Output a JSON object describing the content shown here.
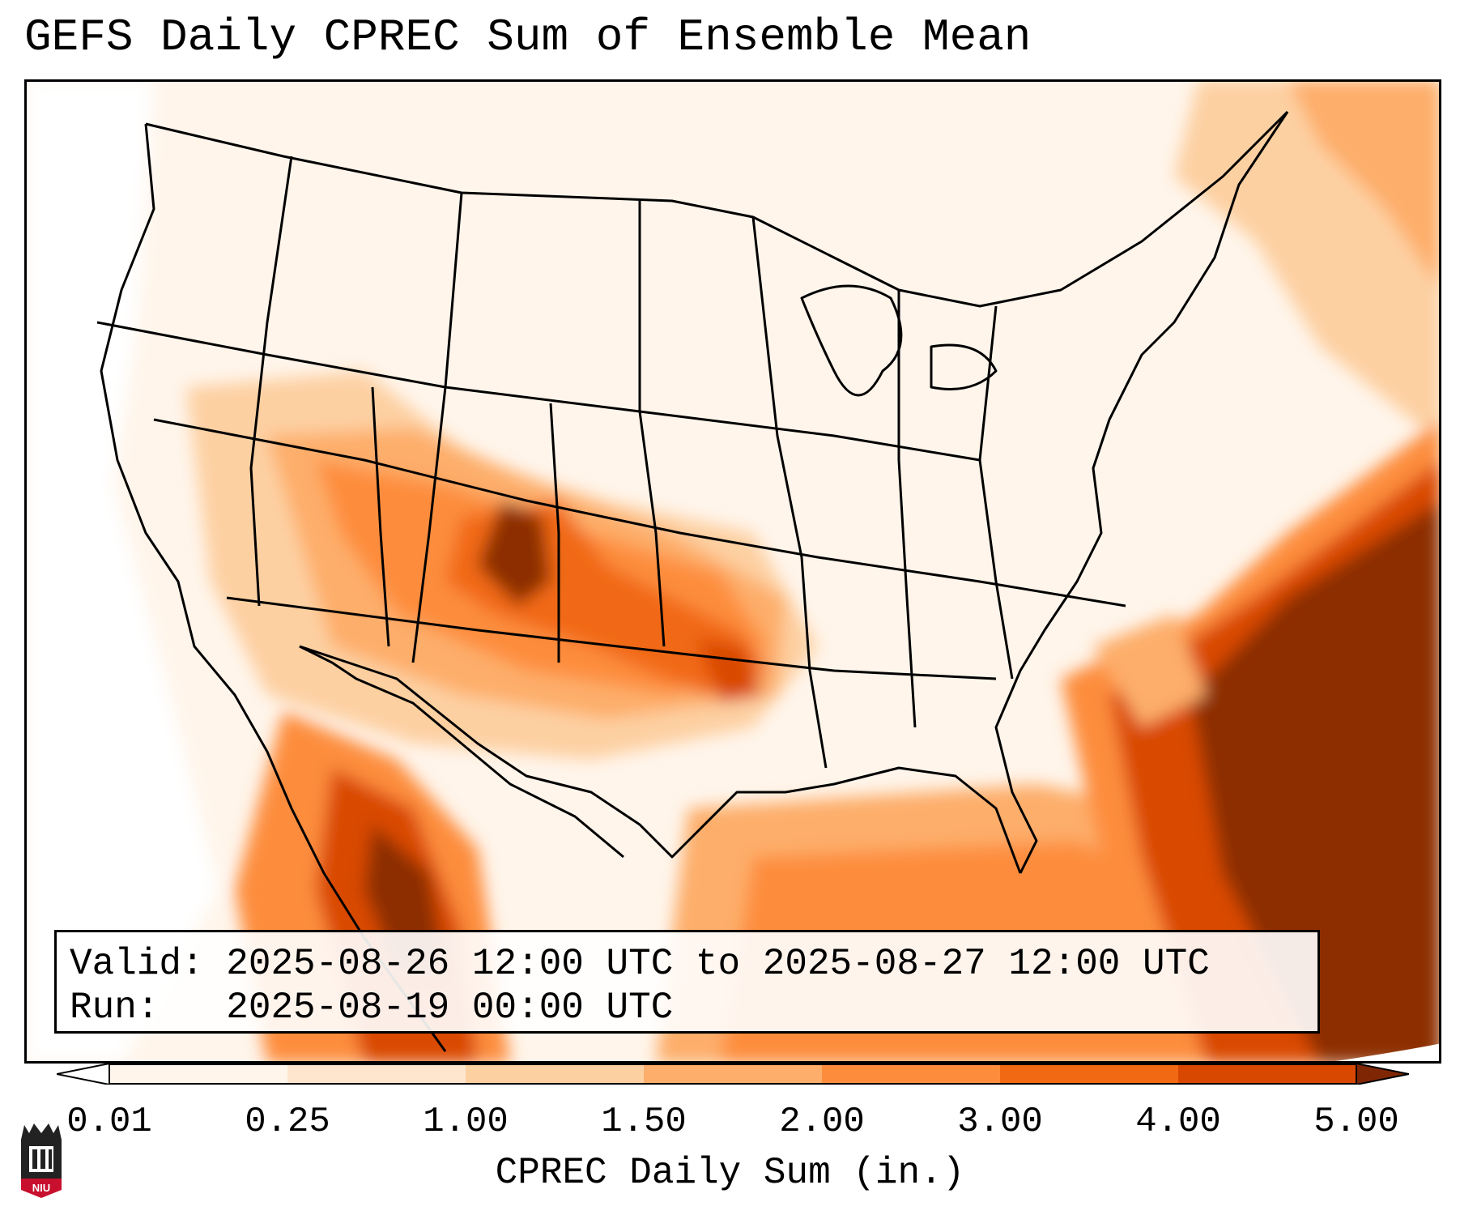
{
  "title": "GEFS Daily CPREC Sum of Ensemble Mean",
  "info": {
    "valid_line": "Valid: 2025-08-26 12:00 UTC to 2025-08-27 12:00 UTC",
    "run_line": "Run:   2025-08-19 00:00 UTC"
  },
  "colorbar": {
    "label": "CPREC Daily Sum (in.)",
    "ticks": [
      "0.01",
      "0.25",
      "1.00",
      "1.50",
      "2.00",
      "3.00",
      "4.00",
      "5.00"
    ],
    "colors": [
      "#fff5eb",
      "#fee6ce",
      "#fdd0a2",
      "#fdae6b",
      "#fd8d3c",
      "#f16913",
      "#d94801",
      "#8c2d04"
    ],
    "under_color": "#ffffff",
    "over_color": "#7f2704"
  },
  "logo": {
    "text": "NIU",
    "color": "#c8102e"
  }
}
